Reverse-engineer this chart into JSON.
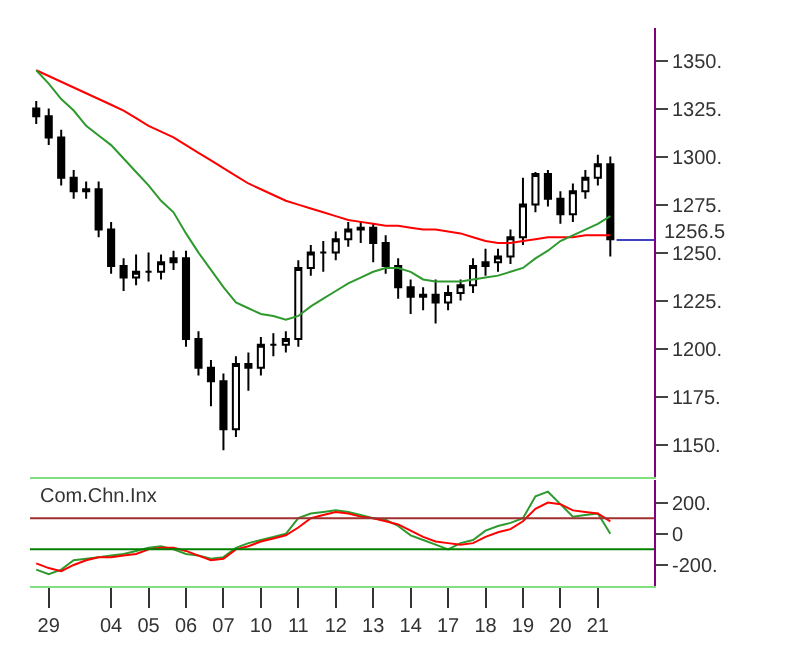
{
  "chart_data": [
    {
      "type": "candlestick",
      "tick_labels": "y",
      "categories": [
        null,
        "29",
        null,
        null,
        null,
        null,
        "04",
        null,
        null,
        "05",
        null,
        null,
        "06",
        null,
        null,
        "07",
        null,
        null,
        "10",
        null,
        null,
        "11",
        null,
        null,
        "12",
        null,
        null,
        "13",
        null,
        null,
        "14",
        null,
        null,
        "17",
        null,
        null,
        "18",
        null,
        null,
        "19",
        null,
        null,
        "20",
        null,
        null,
        "21",
        null
      ],
      "ohlc": [
        [
          1325,
          1329,
          1317,
          1321
        ],
        [
          1321,
          1325,
          1306,
          1310
        ],
        [
          1310,
          1314,
          1285,
          1289
        ],
        [
          1289,
          1293,
          1278,
          1282
        ],
        [
          1282,
          1287,
          1278,
          1283
        ],
        [
          1283,
          1287,
          1258,
          1262
        ],
        [
          1262,
          1266,
          1239,
          1243
        ],
        [
          1243,
          1247,
          1230,
          1237
        ],
        [
          1237,
          1249,
          1233,
          1240
        ],
        [
          1240,
          1250,
          1235,
          1240
        ],
        [
          1240,
          1249,
          1236,
          1245
        ],
        [
          1245,
          1251,
          1241,
          1247
        ],
        [
          1247,
          1251,
          1201,
          1205
        ],
        [
          1205,
          1209,
          1186,
          1190
        ],
        [
          1190,
          1194,
          1170,
          1183
        ],
        [
          1183,
          1187,
          1147,
          1158
        ],
        [
          1158,
          1196,
          1154,
          1192
        ],
        [
          1192,
          1198,
          1178,
          1190
        ],
        [
          1190,
          1206,
          1186,
          1202
        ],
        [
          1202,
          1208,
          1196,
          1202
        ],
        [
          1202,
          1209,
          1198,
          1205
        ],
        [
          1205,
          1246,
          1201,
          1242
        ],
        [
          1242,
          1254,
          1238,
          1250
        ],
        [
          1250,
          1256,
          1240,
          1250
        ],
        [
          1250,
          1261,
          1246,
          1257
        ],
        [
          1257,
          1266,
          1253,
          1262
        ],
        [
          1262,
          1266,
          1255,
          1263
        ],
        [
          1263,
          1265,
          1245,
          1255
        ],
        [
          1255,
          1259,
          1239,
          1243
        ],
        [
          1243,
          1247,
          1226,
          1232
        ],
        [
          1232,
          1236,
          1218,
          1227
        ],
        [
          1227,
          1232,
          1220,
          1228
        ],
        [
          1228,
          1236,
          1213,
          1224
        ],
        [
          1224,
          1233,
          1220,
          1229
        ],
        [
          1229,
          1236,
          1225,
          1233
        ],
        [
          1233,
          1247,
          1229,
          1243
        ],
        [
          1243,
          1252,
          1238,
          1245
        ],
        [
          1245,
          1252,
          1240,
          1248
        ],
        [
          1248,
          1262,
          1244,
          1258
        ],
        [
          1258,
          1289,
          1254,
          1275
        ],
        [
          1275,
          1292,
          1271,
          1291
        ],
        [
          1291,
          1293,
          1274,
          1278
        ],
        [
          1278,
          1282,
          1265,
          1270
        ],
        [
          1270,
          1286,
          1266,
          1282
        ],
        [
          1282,
          1293,
          1278,
          1289
        ],
        [
          1289,
          1301,
          1285,
          1296
        ],
        [
          1296,
          1300,
          1248,
          1257
        ]
      ],
      "series": [
        {
          "type": "line",
          "color": "#ff0000",
          "values": [
            1345,
            1342,
            1339,
            1336,
            1333,
            1330,
            1327,
            1324,
            1320,
            1316,
            1313,
            1310,
            1306,
            1302,
            1298,
            1294,
            1290,
            1286,
            1283,
            1280,
            1277,
            1275,
            1273,
            1271,
            1269,
            1267,
            1266,
            1265,
            1264,
            1264,
            1263,
            1262,
            1262,
            1261,
            1260,
            1258,
            1256,
            1255,
            1255,
            1256,
            1257,
            1258,
            1258,
            1258,
            1259,
            1259,
            1259
          ]
        },
        {
          "type": "line",
          "color": "#2e9a2e",
          "values": [
            1345,
            1338,
            1330,
            1324,
            1316,
            1311,
            1306,
            1299,
            1292,
            1285,
            1277,
            1271,
            1260,
            1250,
            1241,
            1232,
            1224,
            1221,
            1218,
            1217,
            1215,
            1217,
            1222,
            1226,
            1230,
            1234,
            1237,
            1240,
            1242,
            1242,
            1240,
            1236,
            1235,
            1235,
            1235,
            1236,
            1237,
            1238,
            1240,
            1242,
            1247,
            1251,
            1256,
            1259,
            1262,
            1265,
            1269
          ]
        }
      ],
      "ylim": [
        1133,
        1367
      ],
      "yticks": [
        {
          "value": 1150,
          "label": "1150."
        },
        {
          "value": 1175,
          "label": "1175."
        },
        {
          "value": 1200,
          "label": "1200."
        },
        {
          "value": 1225,
          "label": "1225."
        },
        {
          "value": 1250,
          "label": "1250."
        },
        {
          "value": 1275,
          "label": "1275."
        },
        {
          "value": 1300,
          "label": "1300."
        },
        {
          "value": 1325,
          "label": "1325."
        },
        {
          "value": 1350,
          "label": "1350."
        }
      ],
      "ref_lines": [
        {
          "axis": "y",
          "value": 1256.5,
          "label": "1256.5",
          "color": "#4040c0"
        }
      ]
    },
    {
      "type": "line",
      "title": "Com.Chn.Inx",
      "categories": [
        null,
        "29",
        null,
        null,
        null,
        null,
        "04",
        null,
        null,
        "05",
        null,
        null,
        "06",
        null,
        null,
        "07",
        null,
        null,
        "10",
        null,
        null,
        "11",
        null,
        null,
        "12",
        null,
        null,
        "13",
        null,
        null,
        "14",
        null,
        null,
        "17",
        null,
        null,
        "18",
        null,
        null,
        "19",
        null,
        null,
        "20",
        null,
        null,
        "21",
        null
      ],
      "series": [
        {
          "color": "#2e9a2e",
          "values": [
            -230,
            -260,
            -230,
            -170,
            -160,
            -150,
            -140,
            -130,
            -110,
            -90,
            -80,
            -100,
            -130,
            -140,
            -160,
            -150,
            -90,
            -60,
            -40,
            -20,
            0,
            100,
            130,
            140,
            150,
            140,
            120,
            100,
            90,
            50,
            -10,
            -40,
            -70,
            -100,
            -60,
            -40,
            20,
            50,
            70,
            100,
            240,
            270,
            190,
            110,
            120,
            130,
            0
          ]
        },
        {
          "color": "#ff0000",
          "values": [
            -190,
            -220,
            -240,
            -200,
            -170,
            -150,
            -150,
            -140,
            -130,
            -100,
            -90,
            -90,
            -110,
            -140,
            -170,
            -160,
            -100,
            -80,
            -50,
            -30,
            -10,
            40,
            100,
            120,
            140,
            130,
            110,
            100,
            80,
            60,
            20,
            -20,
            -50,
            -60,
            -70,
            -60,
            -20,
            10,
            30,
            80,
            160,
            200,
            190,
            150,
            140,
            130,
            80
          ]
        }
      ],
      "ylim": [
        -335,
        345
      ],
      "yticks": [
        {
          "value": -200,
          "label": "-200."
        },
        0,
        {
          "value": 200,
          "label": "200."
        }
      ],
      "ref_lines": [
        {
          "axis": "y",
          "value": 100,
          "color": "#a03030"
        },
        {
          "axis": "y",
          "value": -100,
          "color": "#008000"
        }
      ]
    }
  ]
}
